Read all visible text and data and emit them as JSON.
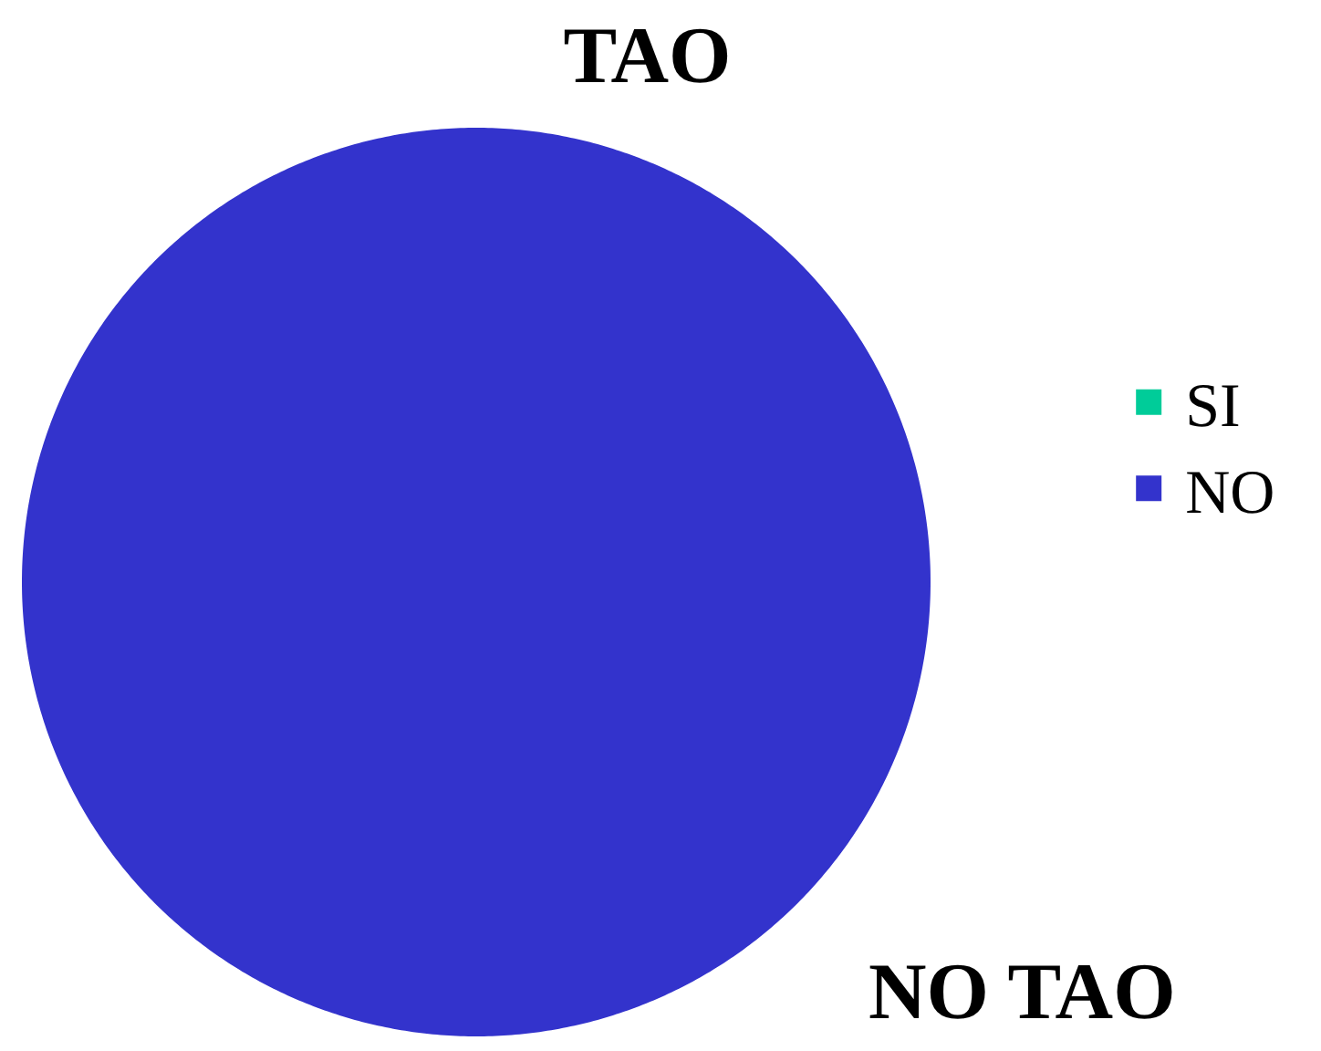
{
  "chart_data": {
    "type": "pie",
    "title": "TAO",
    "categories": [
      "SI",
      "NO"
    ],
    "values": [
      0,
      100
    ],
    "colors": [
      "#00cc99",
      "#3333cc"
    ],
    "legend": "right",
    "annotations": [
      "NO TAO"
    ]
  }
}
